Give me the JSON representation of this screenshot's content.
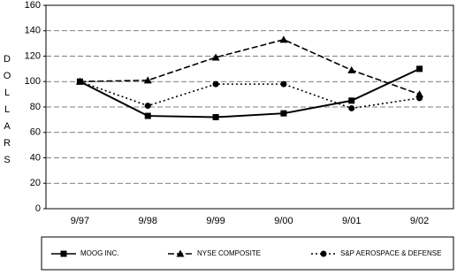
{
  "chart_data": {
    "type": "line",
    "y_label": "DOLLARS",
    "categories": [
      "9/97",
      "9/98",
      "9/99",
      "9/00",
      "9/01",
      "9/02"
    ],
    "series": [
      {
        "name": "MOOG INC.",
        "color": "#000000",
        "marker": "square",
        "line_style": "solid",
        "values": [
          100,
          73,
          72,
          75,
          85,
          110
        ]
      },
      {
        "name": "NYSE COMPOSITE",
        "color": "#000000",
        "marker": "triangle",
        "line_style": "dashed",
        "values": [
          100,
          101,
          119,
          133,
          109,
          90
        ]
      },
      {
        "name": "S&P AEROSPACE & DEFENSE",
        "color": "#000000",
        "marker": "circle",
        "line_style": "dotted",
        "values": [
          100,
          81,
          98,
          98,
          79,
          87
        ]
      }
    ],
    "ylim": [
      0,
      160
    ],
    "yticks": [
      0,
      20,
      40,
      60,
      80,
      100,
      120,
      140,
      160
    ],
    "grid": true
  }
}
